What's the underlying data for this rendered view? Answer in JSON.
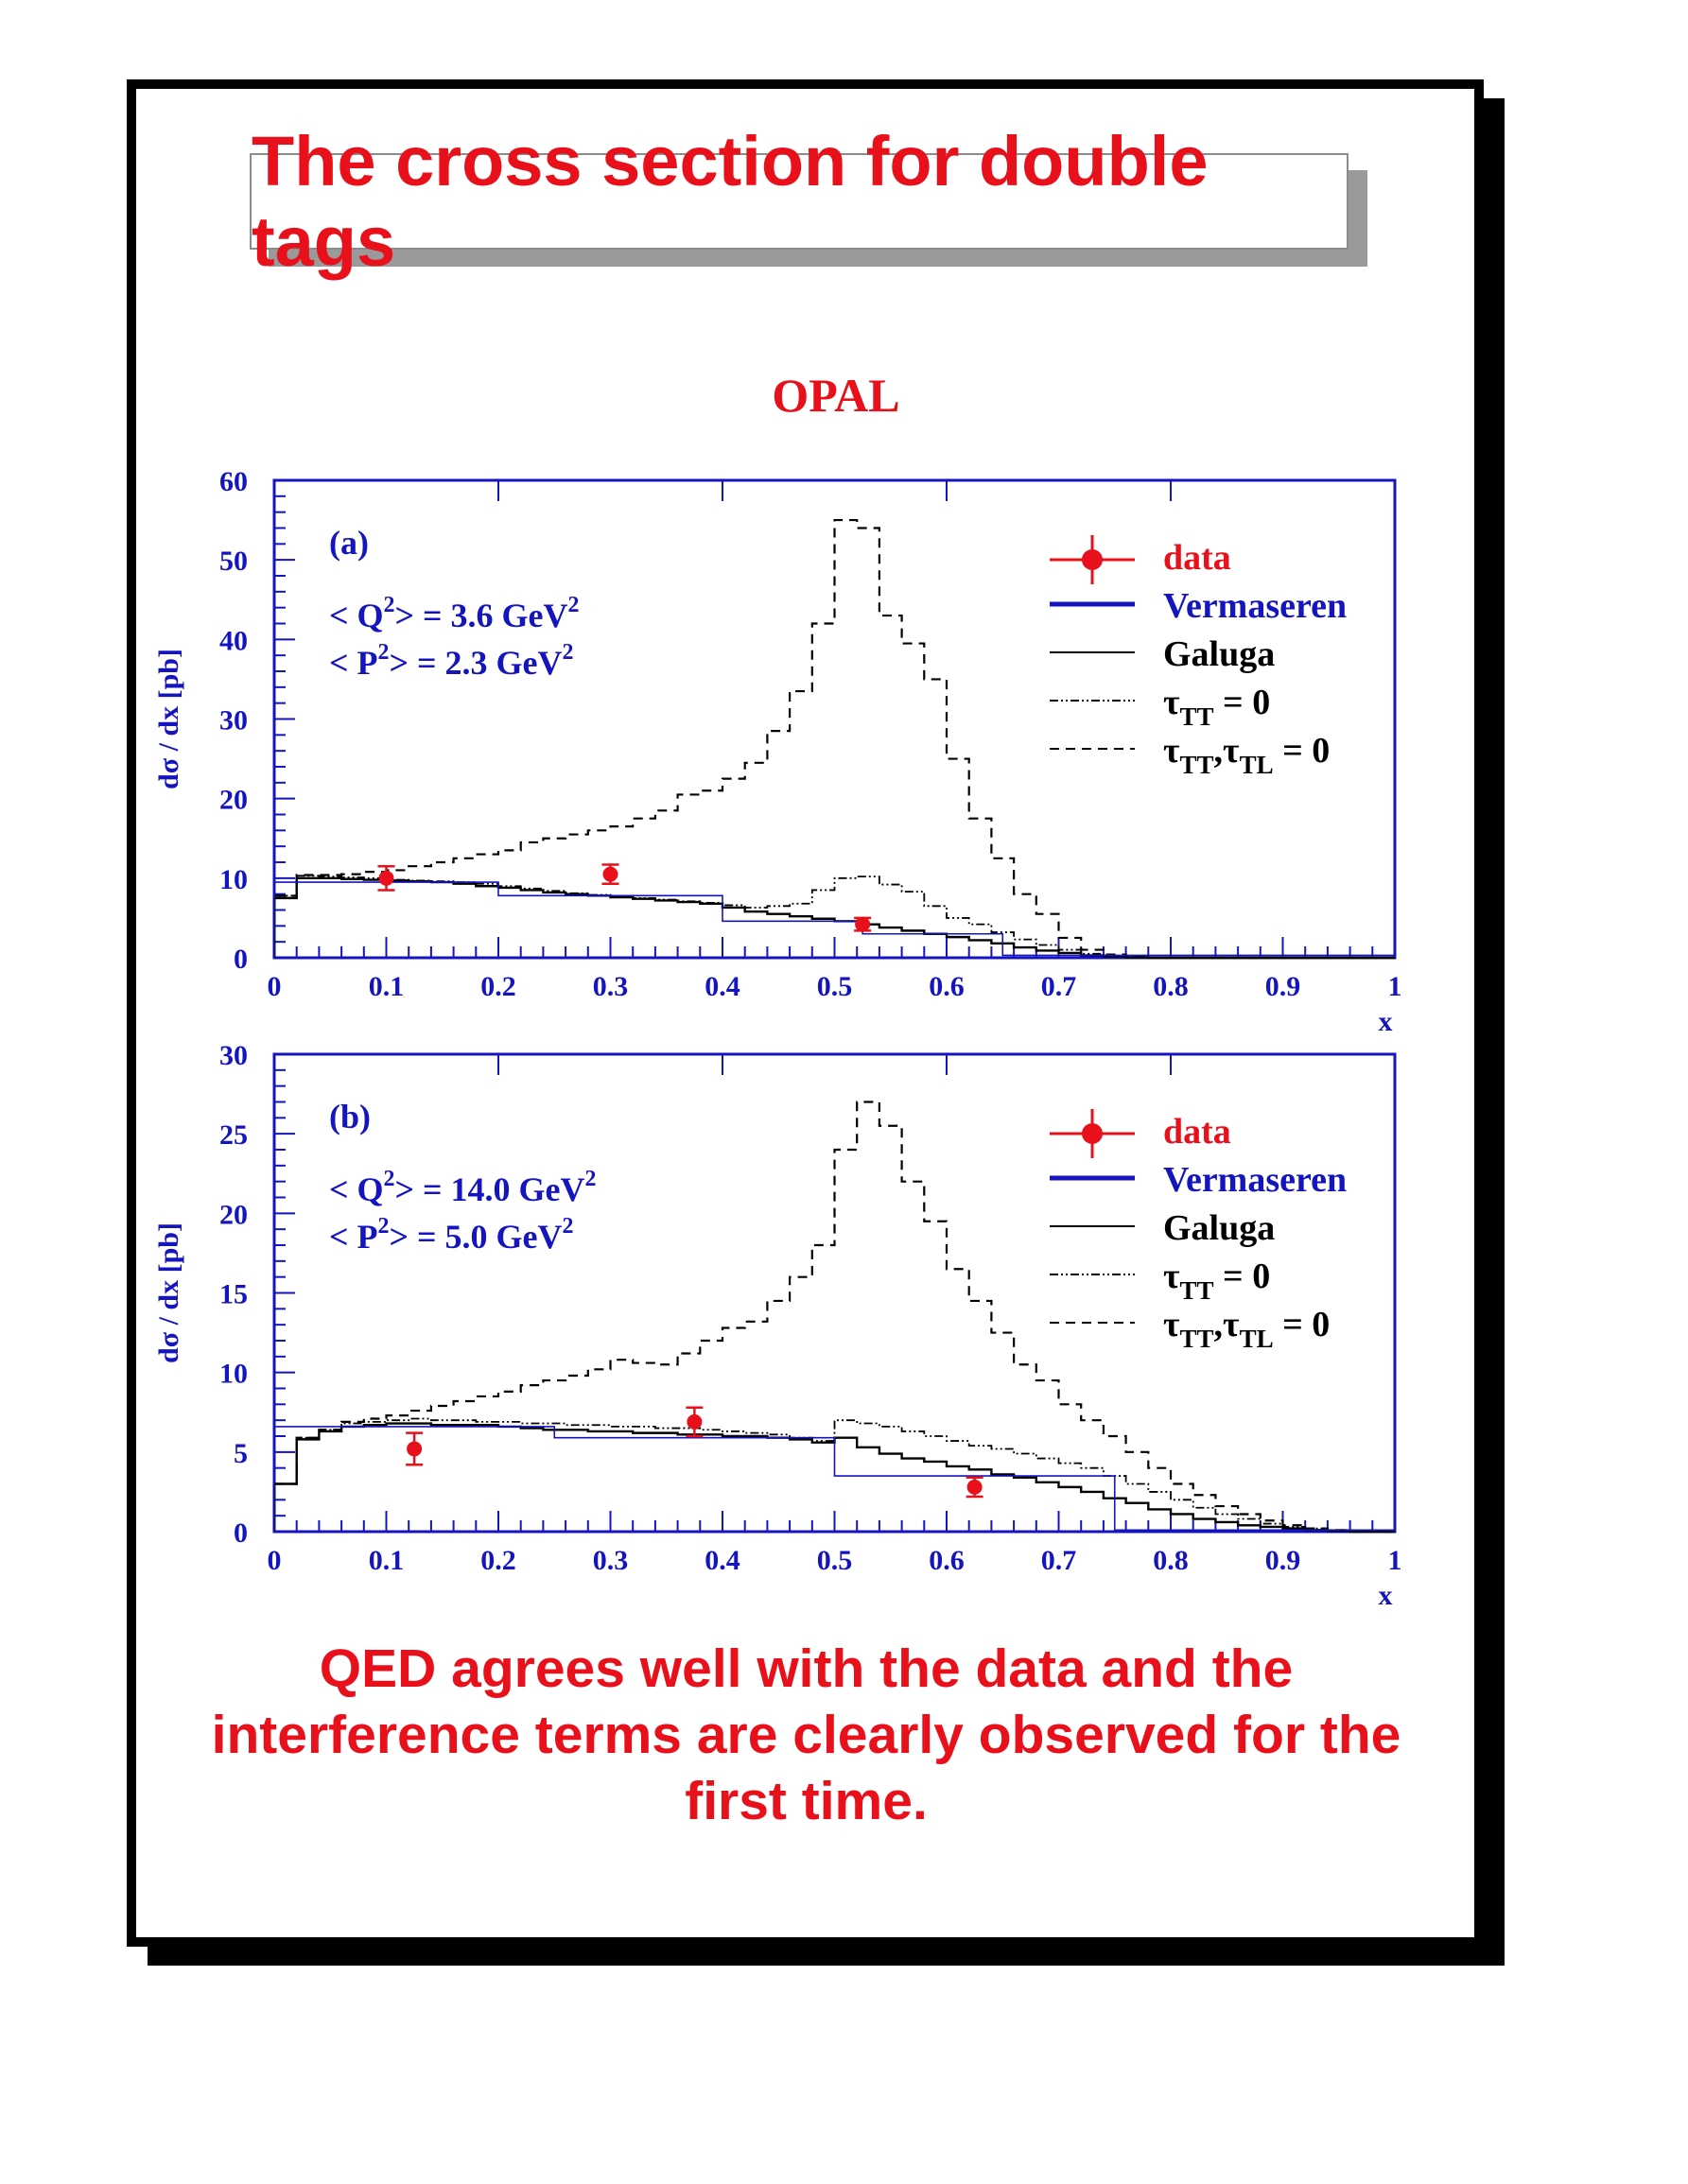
{
  "title": "The cross section for double tags",
  "experiment": "OPAL",
  "conclusion": "QED agrees well with the data and the interference terms are clearly observed for the first time.",
  "colors": {
    "title": "#e8101a",
    "axis": "#1515c0",
    "data": "#e8101a",
    "vermaseren": "#1515c0",
    "curves": "#000000"
  },
  "chart_data": [
    {
      "type": "line",
      "panel_label": "(a)",
      "annotations": [
        "< Q",
        "2",
        "> = 3.6 GeV",
        "2",
        "< P",
        "2",
        "> = 2.3 GeV",
        "2"
      ],
      "xlabel": "x",
      "ylabel": "dσ / dx [pb]",
      "xlim": [
        0,
        1
      ],
      "ylim": [
        0,
        60
      ],
      "xticks": [
        "0",
        "0.1",
        "0.2",
        "0.3",
        "0.4",
        "0.5",
        "0.6",
        "0.7",
        "0.8",
        "0.9",
        "1"
      ],
      "yticks": [
        "0",
        "10",
        "20",
        "30",
        "40",
        "50",
        "60"
      ],
      "legend": [
        "data",
        "Vermaseren",
        "Galuga",
        "τTT = 0",
        "τTT,τTL = 0"
      ],
      "legend_position": "top-right",
      "data": {
        "x": [
          0.1,
          0.3,
          0.525
        ],
        "y": [
          10.0,
          10.5,
          4.2
        ],
        "yerr": [
          1.5,
          1.2,
          0.8
        ],
        "xerr": [
          0.1,
          0.1,
          0.125
        ]
      },
      "series": [
        {
          "name": "Vermaseren",
          "style": "histogram",
          "edges": [
            0,
            0.2,
            0.4,
            0.525,
            0.65,
            1.0
          ],
          "values": [
            9.5,
            7.8,
            4.6,
            3.0,
            0.3
          ]
        },
        {
          "name": "Galuga",
          "style": "histogram",
          "edges": [
            0,
            0.02,
            0.04,
            0.06,
            0.08,
            0.1,
            0.12,
            0.14,
            0.16,
            0.18,
            0.2,
            0.22,
            0.24,
            0.26,
            0.28,
            0.3,
            0.32,
            0.34,
            0.36,
            0.38,
            0.4,
            0.42,
            0.44,
            0.46,
            0.48,
            0.5,
            0.52,
            0.54,
            0.56,
            0.58,
            0.6,
            0.62,
            0.64,
            0.66,
            0.68,
            0.7,
            0.72,
            0.74,
            0.76,
            0.78,
            0.8,
            0.85,
            0.9,
            0.95,
            1.0
          ],
          "values": [
            7.5,
            10.0,
            10.0,
            9.9,
            9.8,
            9.7,
            9.6,
            9.5,
            9.3,
            9.0,
            8.8,
            8.5,
            8.2,
            8.0,
            7.8,
            7.6,
            7.4,
            7.2,
            7.0,
            6.8,
            6.3,
            5.8,
            5.5,
            5.2,
            4.9,
            4.6,
            4.2,
            3.8,
            3.4,
            3.0,
            2.6,
            2.2,
            1.8,
            1.3,
            0.9,
            0.6,
            0.3,
            0.15,
            0.05,
            0.0,
            0.0,
            0.0,
            0.0,
            0.0
          ]
        },
        {
          "name": "τTT = 0",
          "style": "histogram",
          "edges": [
            0,
            0.02,
            0.04,
            0.06,
            0.08,
            0.1,
            0.12,
            0.14,
            0.16,
            0.18,
            0.2,
            0.22,
            0.24,
            0.26,
            0.28,
            0.3,
            0.32,
            0.34,
            0.36,
            0.38,
            0.4,
            0.42,
            0.44,
            0.46,
            0.48,
            0.5,
            0.52,
            0.54,
            0.56,
            0.58,
            0.6,
            0.62,
            0.64,
            0.66,
            0.68,
            0.7,
            0.72,
            0.74,
            0.76,
            0.78,
            0.8,
            0.85,
            0.9,
            0.95,
            1.0
          ],
          "values": [
            7.8,
            10.3,
            10.2,
            10.1,
            10.0,
            9.8,
            9.7,
            9.6,
            9.5,
            9.3,
            9.0,
            8.7,
            8.4,
            8.1,
            7.9,
            7.7,
            7.5,
            7.3,
            7.1,
            6.9,
            6.6,
            6.3,
            6.5,
            6.8,
            8.5,
            10.0,
            10.2,
            9.2,
            8.3,
            6.5,
            5.0,
            4.2,
            3.2,
            2.3,
            1.6,
            1.0,
            0.5,
            0.25,
            0.1,
            0.0,
            0.0,
            0.0,
            0.0,
            0.0
          ]
        },
        {
          "name": "τTT,τTL = 0",
          "style": "histogram",
          "edges": [
            0,
            0.02,
            0.04,
            0.06,
            0.08,
            0.1,
            0.12,
            0.14,
            0.16,
            0.18,
            0.2,
            0.22,
            0.24,
            0.26,
            0.28,
            0.3,
            0.32,
            0.34,
            0.36,
            0.38,
            0.4,
            0.42,
            0.44,
            0.46,
            0.48,
            0.5,
            0.52,
            0.54,
            0.56,
            0.58,
            0.6,
            0.62,
            0.64,
            0.66,
            0.68,
            0.7,
            0.72,
            0.74,
            0.76,
            0.78,
            0.8,
            0.85,
            0.9,
            0.95,
            1.0
          ],
          "values": [
            7.8,
            10.4,
            10.4,
            10.5,
            10.8,
            11.0,
            11.5,
            12.0,
            12.5,
            13.0,
            13.5,
            14.5,
            15.0,
            15.5,
            16.0,
            16.5,
            17.5,
            18.5,
            20.5,
            21.0,
            22.5,
            24.5,
            28.5,
            33.5,
            42.0,
            55.0,
            54.0,
            43.0,
            39.5,
            35.0,
            25.0,
            17.5,
            12.5,
            8.0,
            5.5,
            2.5,
            1.0,
            0.4,
            0.1,
            0.0,
            0.0,
            0.0,
            0.0,
            0.0
          ]
        }
      ]
    },
    {
      "type": "line",
      "panel_label": "(b)",
      "annotations": [
        "< Q",
        "2",
        "> = 14.0 GeV",
        "2",
        "< P",
        "2",
        "> =  5.0 GeV",
        "2"
      ],
      "xlabel": "x",
      "ylabel": "dσ / dx [pb]",
      "xlim": [
        0,
        1
      ],
      "ylim": [
        0,
        30
      ],
      "xticks": [
        "0",
        "0.1",
        "0.2",
        "0.3",
        "0.4",
        "0.5",
        "0.6",
        "0.7",
        "0.8",
        "0.9",
        "1"
      ],
      "yticks": [
        "0",
        "5",
        "10",
        "15",
        "20",
        "25",
        "30"
      ],
      "legend": [
        "data",
        "Vermaseren",
        "Galuga",
        "τTT = 0",
        "τTT,τTL = 0"
      ],
      "legend_position": "top-right",
      "data": {
        "x": [
          0.125,
          0.375,
          0.625
        ],
        "y": [
          5.2,
          6.9,
          2.8
        ],
        "yerr": [
          1.0,
          0.9,
          0.6
        ],
        "xerr": [
          0.125,
          0.125,
          0.125
        ]
      },
      "series": [
        {
          "name": "Vermaseren",
          "style": "histogram",
          "edges": [
            0,
            0.25,
            0.5,
            0.75,
            1.0
          ],
          "values": [
            6.6,
            5.9,
            3.5,
            0.1
          ]
        },
        {
          "name": "Galuga",
          "style": "histogram",
          "edges": [
            0,
            0.02,
            0.04,
            0.06,
            0.08,
            0.1,
            0.12,
            0.14,
            0.16,
            0.18,
            0.2,
            0.22,
            0.24,
            0.26,
            0.28,
            0.3,
            0.32,
            0.34,
            0.36,
            0.38,
            0.4,
            0.42,
            0.44,
            0.46,
            0.48,
            0.5,
            0.52,
            0.54,
            0.56,
            0.58,
            0.6,
            0.62,
            0.64,
            0.66,
            0.68,
            0.7,
            0.72,
            0.74,
            0.76,
            0.78,
            0.8,
            0.82,
            0.84,
            0.86,
            0.88,
            0.9,
            0.92,
            0.94,
            0.96,
            0.98,
            1.0
          ],
          "values": [
            3.0,
            5.8,
            6.3,
            6.6,
            6.7,
            6.8,
            6.8,
            6.7,
            6.7,
            6.7,
            6.6,
            6.5,
            6.4,
            6.4,
            6.3,
            6.3,
            6.2,
            6.2,
            6.1,
            6.1,
            6.0,
            6.0,
            5.9,
            5.8,
            5.6,
            5.9,
            5.3,
            4.9,
            4.6,
            4.4,
            4.1,
            3.9,
            3.6,
            3.4,
            3.1,
            2.8,
            2.5,
            2.1,
            1.8,
            1.4,
            1.1,
            0.8,
            0.6,
            0.4,
            0.3,
            0.2,
            0.1,
            0.05,
            0.0,
            0.0
          ]
        },
        {
          "name": "τTT = 0",
          "style": "histogram",
          "edges": [
            0,
            0.02,
            0.04,
            0.06,
            0.08,
            0.1,
            0.12,
            0.14,
            0.16,
            0.18,
            0.2,
            0.22,
            0.24,
            0.26,
            0.28,
            0.3,
            0.32,
            0.34,
            0.36,
            0.38,
            0.4,
            0.42,
            0.44,
            0.46,
            0.48,
            0.5,
            0.52,
            0.54,
            0.56,
            0.58,
            0.6,
            0.62,
            0.64,
            0.66,
            0.68,
            0.7,
            0.72,
            0.74,
            0.76,
            0.78,
            0.8,
            0.82,
            0.84,
            0.86,
            0.88,
            0.9,
            0.92,
            0.94,
            0.96,
            0.98,
            1.0
          ],
          "values": [
            3.0,
            5.9,
            6.4,
            6.8,
            6.9,
            7.0,
            7.1,
            7.0,
            7.0,
            6.9,
            6.9,
            6.8,
            6.8,
            6.7,
            6.7,
            6.6,
            6.6,
            6.5,
            6.5,
            6.4,
            6.3,
            6.2,
            6.1,
            5.9,
            5.7,
            7.0,
            6.8,
            6.6,
            6.3,
            6.0,
            5.7,
            5.4,
            5.2,
            4.9,
            4.6,
            4.3,
            4.0,
            3.5,
            3.0,
            2.5,
            2.0,
            1.5,
            1.1,
            0.8,
            0.5,
            0.3,
            0.2,
            0.1,
            0.0,
            0.0
          ]
        },
        {
          "name": "τTT,τTL = 0",
          "style": "histogram",
          "edges": [
            0,
            0.02,
            0.04,
            0.06,
            0.08,
            0.1,
            0.12,
            0.14,
            0.16,
            0.18,
            0.2,
            0.22,
            0.24,
            0.26,
            0.28,
            0.3,
            0.32,
            0.34,
            0.36,
            0.38,
            0.4,
            0.42,
            0.44,
            0.46,
            0.48,
            0.5,
            0.52,
            0.54,
            0.56,
            0.58,
            0.6,
            0.62,
            0.64,
            0.66,
            0.68,
            0.7,
            0.72,
            0.74,
            0.76,
            0.78,
            0.8,
            0.82,
            0.84,
            0.86,
            0.88,
            0.9,
            0.92,
            0.94,
            0.96,
            0.98,
            1.0
          ],
          "values": [
            3.0,
            5.9,
            6.4,
            6.9,
            7.1,
            7.3,
            7.6,
            7.9,
            8.2,
            8.5,
            8.8,
            9.2,
            9.5,
            9.8,
            10.2,
            10.8,
            10.6,
            10.5,
            11.2,
            12.0,
            12.8,
            13.2,
            14.5,
            16.0,
            18.0,
            24.0,
            27.0,
            25.5,
            22.0,
            19.5,
            16.5,
            14.5,
            12.5,
            10.5,
            9.5,
            8.0,
            7.0,
            6.0,
            5.0,
            4.0,
            3.0,
            2.3,
            1.6,
            1.1,
            0.7,
            0.4,
            0.2,
            0.1,
            0.0,
            0.0
          ]
        }
      ]
    }
  ]
}
